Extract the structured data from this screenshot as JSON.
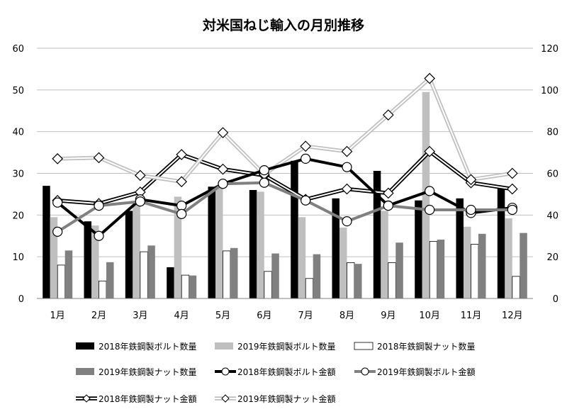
{
  "chart_data": {
    "type": "bar",
    "title": "対米国ねじ輸入の月別推移",
    "categories": [
      "1月",
      "2月",
      "3月",
      "4月",
      "5月",
      "6月",
      "7月",
      "8月",
      "9月",
      "10月",
      "11月",
      "12月"
    ],
    "y_left": {
      "min": 0,
      "max": 60,
      "ticks": [
        "0",
        "10",
        "20",
        "30",
        "40",
        "50",
        "60"
      ]
    },
    "y_right": {
      "min": 0,
      "max": 120,
      "ticks": [
        "0",
        "20",
        "40",
        "60",
        "80",
        "100",
        "120"
      ]
    },
    "grid": true,
    "legend_position": "bottom",
    "series": [
      {
        "name": "2018年鉄鋼製ボルト数量",
        "kind": "bar",
        "axis": "left",
        "color": "#000000",
        "values": [
          27,
          18.5,
          21,
          7.5,
          26.8,
          26,
          33,
          24,
          30.6,
          23.5,
          24,
          26.5
        ]
      },
      {
        "name": "2019年鉄鋼製ボルト数量",
        "kind": "bar",
        "axis": "left",
        "color": "#bfbfbf",
        "values": [
          19.5,
          17.5,
          23,
          24.4,
          26.7,
          25.6,
          19.5,
          17,
          21,
          49.5,
          17.2,
          19.2
        ]
      },
      {
        "name": "2018年鉄鋼製ナット数量",
        "kind": "bar",
        "axis": "left",
        "color": "#ffffff",
        "values": [
          8,
          4.2,
          11.2,
          5.6,
          11.4,
          6.5,
          4.8,
          8.6,
          8.6,
          13.7,
          13,
          5.3
        ]
      },
      {
        "name": "2019年鉄鋼製ナット数量",
        "kind": "bar",
        "axis": "left",
        "color": "#808080",
        "values": [
          11.5,
          8.7,
          12.7,
          5.5,
          12.1,
          10.8,
          10.6,
          8.3,
          13.4,
          14.1,
          15.5,
          15.7
        ]
      },
      {
        "name": "2018年鉄鋼製ボルト金額",
        "kind": "line",
        "axis": "right",
        "color": "#000000",
        "marker": "circle",
        "values": [
          46,
          30,
          47.5,
          44.5,
          55,
          61.5,
          67,
          63,
          44.6,
          51.5,
          41,
          43.5
        ]
      },
      {
        "name": "2019年鉄鋼製ボルト金額",
        "kind": "line",
        "axis": "right",
        "color": "#808080",
        "marker": "circle",
        "values": [
          32,
          44.5,
          46.5,
          40.5,
          55,
          55.5,
          47,
          37,
          44.5,
          42.5,
          42.5,
          42.5
        ]
      },
      {
        "name": "2018年鉄鋼製ナット金額",
        "kind": "line",
        "axis": "right",
        "color": "#000000",
        "marker": "diamond",
        "values": [
          47,
          45.5,
          51,
          69,
          62,
          59,
          47.5,
          52.5,
          50.5,
          70.5,
          55.5,
          52.5
        ]
      },
      {
        "name": "2019年鉄鋼製ナット金額",
        "kind": "line",
        "axis": "right",
        "color": "#bfbfbf",
        "marker": "diamond",
        "values": [
          67,
          67.5,
          59,
          56,
          79.5,
          59.5,
          73,
          70.5,
          88,
          105.5,
          57,
          60
        ]
      }
    ]
  }
}
